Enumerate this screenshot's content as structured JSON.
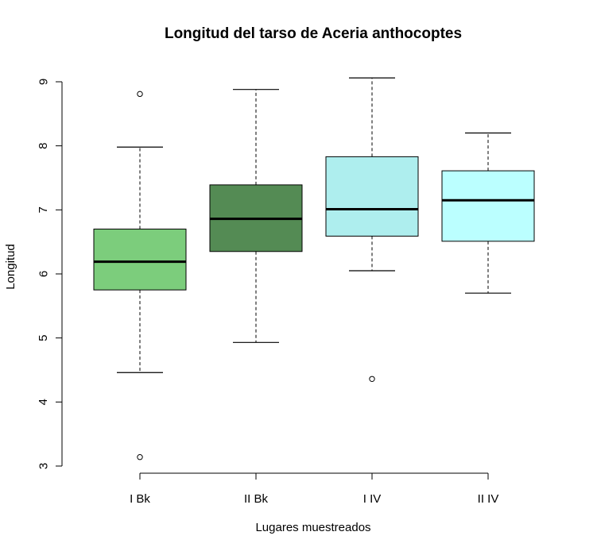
{
  "chart_data": {
    "type": "boxplot",
    "title": "Longitud del tarso de Aceria anthocoptes",
    "xlabel": "Lugares muestreados",
    "ylabel": "Longitud",
    "ylim": [
      3,
      9
    ],
    "yticks": [
      "3",
      "4",
      "5",
      "6",
      "7",
      "8",
      "9"
    ],
    "categories": [
      "I Bk",
      "II Bk",
      "I IV",
      "II IV"
    ],
    "boxes": [
      {
        "category": "I Bk",
        "whisker_low": 4.46,
        "q1": 5.75,
        "median": 6.19,
        "q3": 6.7,
        "whisker_high": 7.98,
        "outliers": [
          8.81,
          3.14
        ],
        "color": "#7ccd7c"
      },
      {
        "category": "II Bk",
        "whisker_low": 4.93,
        "q1": 6.35,
        "median": 6.86,
        "q3": 7.39,
        "whisker_high": 8.88,
        "outliers": [],
        "color": "#548b54"
      },
      {
        "category": "I IV",
        "whisker_low": 6.05,
        "q1": 6.59,
        "median": 7.01,
        "q3": 7.83,
        "whisker_high": 9.06,
        "outliers": [
          4.36
        ],
        "color": "#aeeeee"
      },
      {
        "category": "II IV",
        "whisker_low": 5.7,
        "q1": 6.51,
        "median": 7.15,
        "q3": 7.61,
        "whisker_high": 8.2,
        "outliers": [],
        "color": "#bbffff"
      }
    ],
    "grid": false,
    "legend": "none"
  }
}
